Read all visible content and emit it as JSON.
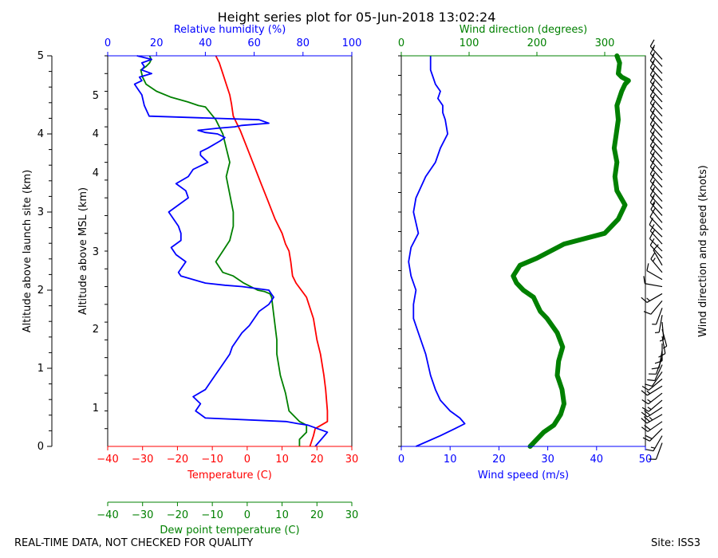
{
  "title": "Height series plot for 05-Jun-2018 13:02:24",
  "footer": {
    "left": "REAL-TIME DATA, NOT CHECKED FOR QUALITY",
    "right": "Site: ISS3"
  },
  "colors": {
    "temperature": "#ff0000",
    "humidity": "#0000ff",
    "dewpoint": "#008000",
    "wind_speed": "#0000ff",
    "wind_direction": "#008000",
    "barbs": "#000000"
  },
  "chart_data": [
    {
      "type": "line",
      "name": "thermo-panel",
      "x_axes": {
        "temperature": {
          "label": "Temperature (C)",
          "lim": [
            -40,
            30
          ],
          "ticks": [
            -40,
            -30,
            -20,
            -10,
            0,
            10,
            20,
            30
          ]
        },
        "humidity": {
          "label": "Relative humidity (%)",
          "lim": [
            0,
            100
          ],
          "ticks": [
            0,
            20,
            40,
            60,
            80,
            100
          ]
        },
        "dewpoint": {
          "label": "Dew point temperature (C)",
          "lim": [
            -40,
            30
          ],
          "ticks": [
            -40,
            -30,
            -20,
            -10,
            0,
            10,
            20,
            30
          ]
        }
      },
      "y_axes": {
        "msl": {
          "label": "Altitude above MSL (km)",
          "tick_labels": [
            "1",
            "2",
            "3",
            "4",
            "5"
          ]
        },
        "site": {
          "label": "Altitude above launch site (km)",
          "tick_labels": [
            "0",
            "1",
            "2",
            "3",
            "4",
            "5"
          ]
        }
      },
      "series": [
        {
          "name": "Temperature (C)",
          "axis": "temperature",
          "x": [
            18,
            19,
            19.5,
            23,
            23,
            22.5,
            22,
            21,
            20,
            19,
            17,
            14,
            13,
            12.5,
            12,
            11,
            10,
            8,
            6,
            4,
            2,
            0,
            -2,
            -4,
            -4.5,
            -5,
            -6,
            -7,
            -8,
            -9
          ],
          "y": [
            0,
            0.15,
            0.25,
            0.35,
            0.5,
            0.8,
            1,
            1.3,
            1.5,
            1.8,
            2.1,
            2.3,
            2.4,
            2.6,
            2.75,
            2.85,
            3,
            3.2,
            3.45,
            3.7,
            3.95,
            4.2,
            4.45,
            4.65,
            4.82,
            4.95,
            5.1,
            5.25,
            5.4,
            5.5
          ]
        },
        {
          "name": "Dewpoint (C)",
          "axis": "dewpoint",
          "x": [
            15,
            15,
            17,
            17,
            15,
            12,
            11,
            9.5,
            8.5,
            8.5,
            8,
            7.5,
            7,
            6.5,
            5,
            3,
            -1,
            -4,
            -7,
            -9,
            -7,
            -5,
            -4,
            -4,
            -5,
            -6,
            -5,
            -6,
            -7,
            -9,
            -12,
            -14,
            -17,
            -22,
            -26,
            -29,
            -30,
            -30.5,
            -29,
            -28,
            -27.5,
            -28
          ],
          "y": [
            0,
            0.1,
            0.2,
            0.3,
            0.35,
            0.5,
            0.75,
            1,
            1.3,
            1.5,
            1.7,
            1.9,
            2.1,
            2.15,
            2.18,
            2.2,
            2.3,
            2.4,
            2.45,
            2.6,
            2.75,
            2.9,
            3.1,
            3.3,
            3.55,
            3.8,
            4,
            4.2,
            4.4,
            4.6,
            4.78,
            4.8,
            4.85,
            4.92,
            5.0,
            5.1,
            5.2,
            5.3,
            5.35,
            5.4,
            5.45,
            5.5
          ]
        },
        {
          "name": "Relative humidity (%)",
          "axis": "humidity",
          "x": [
            85,
            90,
            82,
            78,
            73,
            40,
            38,
            36,
            38,
            35,
            40,
            42,
            44,
            46,
            48,
            50,
            51,
            53,
            55,
            58,
            60,
            62,
            66,
            68,
            67,
            66,
            55,
            48,
            40,
            30,
            29,
            32,
            28,
            26,
            30,
            30,
            29,
            27,
            25,
            29,
            33,
            32,
            28,
            33,
            35,
            41,
            38,
            38,
            41,
            46,
            48,
            45,
            40,
            37,
            45,
            52,
            55,
            66,
            62,
            17,
            15,
            14,
            12,
            11,
            14,
            13,
            18,
            14,
            15,
            14,
            18,
            12
          ],
          "y": [
            0,
            0.2,
            0.3,
            0.32,
            0.35,
            0.4,
            0.45,
            0.5,
            0.6,
            0.7,
            0.8,
            0.9,
            1,
            1.1,
            1.2,
            1.3,
            1.4,
            1.5,
            1.6,
            1.7,
            1.8,
            1.9,
            2,
            2.1,
            2.15,
            2.2,
            2.25,
            2.27,
            2.3,
            2.4,
            2.45,
            2.6,
            2.7,
            2.8,
            2.9,
            3.0,
            3.1,
            3.2,
            3.3,
            3.4,
            3.5,
            3.6,
            3.7,
            3.8,
            3.9,
            4.0,
            4.1,
            4.15,
            4.2,
            4.3,
            4.35,
            4.4,
            4.42,
            4.45,
            4.48,
            4.5,
            4.52,
            4.55,
            4.6,
            4.65,
            4.8,
            4.95,
            5.05,
            5.1,
            5.15,
            5.2,
            5.25,
            5.3,
            5.35,
            5.4,
            5.45,
            5.5
          ]
        }
      ]
    },
    {
      "type": "line",
      "name": "wind-panel",
      "x_axes": {
        "wind_speed": {
          "label": "Wind speed (m/s)",
          "lim": [
            0,
            50
          ],
          "ticks": [
            0,
            10,
            20,
            30,
            40,
            50
          ]
        },
        "wind_direction": {
          "label": "Wind direction (degrees)",
          "lim": [
            0,
            360
          ],
          "ticks": [
            0,
            100,
            200,
            300
          ]
        }
      },
      "y_label_right": "Wind direction and speed (knots)",
      "series": [
        {
          "name": "Wind speed (m/s)",
          "axis": "wind_speed",
          "x": [
            3,
            8,
            11,
            13,
            12,
            10,
            8,
            7,
            6,
            5,
            3.5,
            2.5,
            2.5,
            3,
            2,
            1.5,
            2,
            3.5,
            2.5,
            3,
            5,
            7,
            8,
            9.5,
            9,
            8.5,
            8.5,
            7.5,
            8,
            7,
            6.5,
            6,
            6,
            6
          ],
          "y": [
            0,
            0.15,
            0.25,
            0.32,
            0.4,
            0.5,
            0.65,
            0.8,
            1,
            1.3,
            1.6,
            1.8,
            2,
            2.2,
            2.4,
            2.6,
            2.8,
            3.0,
            3.3,
            3.5,
            3.8,
            4.0,
            4.2,
            4.4,
            4.6,
            4.7,
            4.8,
            4.9,
            5.0,
            5.1,
            5.2,
            5.3,
            5.4,
            5.5
          ]
        },
        {
          "name": "Wind direction (degrees)",
          "axis": "wind_direction",
          "x": [
            190,
            200,
            210,
            225,
            235,
            240,
            237,
            230,
            232,
            238,
            230,
            215,
            205,
            200,
            195,
            180,
            170,
            165,
            175,
            200,
            220,
            240,
            300,
            320,
            330,
            318,
            315,
            318,
            314,
            317,
            320,
            318,
            325,
            330,
            335,
            325,
            320,
            322,
            318
          ],
          "y": [
            0,
            0.1,
            0.2,
            0.3,
            0.45,
            0.6,
            0.8,
            1.0,
            1.2,
            1.4,
            1.6,
            1.8,
            1.9,
            2.0,
            2.1,
            2.2,
            2.3,
            2.4,
            2.55,
            2.65,
            2.75,
            2.85,
            3.0,
            3.2,
            3.4,
            3.6,
            3.8,
            4.0,
            4.2,
            4.4,
            4.6,
            4.8,
            5.0,
            5.1,
            5.15,
            5.2,
            5.25,
            5.4,
            5.5
          ]
        }
      ],
      "barbs": {
        "y": [
          0.05,
          0.15,
          0.25,
          0.35,
          0.45,
          0.55,
          0.65,
          0.75,
          0.85,
          0.95,
          1.05,
          1.15,
          1.25,
          1.35,
          1.45,
          1.55,
          1.65,
          1.75,
          1.85,
          1.95,
          2.05,
          2.15,
          2.25,
          2.35,
          2.45,
          2.55,
          2.65,
          2.75,
          2.85,
          2.95,
          3.05,
          3.15,
          3.25,
          3.35,
          3.45,
          3.55,
          3.65,
          3.75,
          3.85,
          3.95,
          4.05,
          4.15,
          4.25,
          4.35,
          4.45,
          4.55,
          4.65,
          4.75,
          4.85,
          4.95,
          5.05,
          5.15,
          5.25,
          5.35,
          5.45
        ],
        "speed_kt": [
          10,
          15,
          20,
          20,
          25,
          20,
          15,
          15,
          15,
          10,
          10,
          10,
          10,
          10,
          10,
          10,
          5,
          5,
          5,
          5,
          10,
          15,
          10,
          10,
          15,
          10,
          10,
          10,
          15,
          10,
          10,
          15,
          15,
          15,
          15,
          15,
          15,
          15,
          15,
          15,
          15,
          15,
          15,
          15,
          15,
          15,
          15,
          15,
          15,
          15,
          15,
          15,
          15,
          15,
          15
        ],
        "dir_deg": [
          200,
          210,
          225,
          235,
          240,
          237,
          230,
          232,
          238,
          230,
          215,
          205,
          200,
          190,
          180,
          170,
          165,
          175,
          190,
          200,
          220,
          240,
          280,
          300,
          320,
          330,
          318,
          315,
          318,
          314,
          317,
          320,
          318,
          318,
          318,
          318,
          318,
          318,
          318,
          318,
          318,
          318,
          318,
          318,
          318,
          318,
          318,
          318,
          318,
          318,
          318,
          318,
          318,
          318,
          318
        ]
      }
    }
  ]
}
